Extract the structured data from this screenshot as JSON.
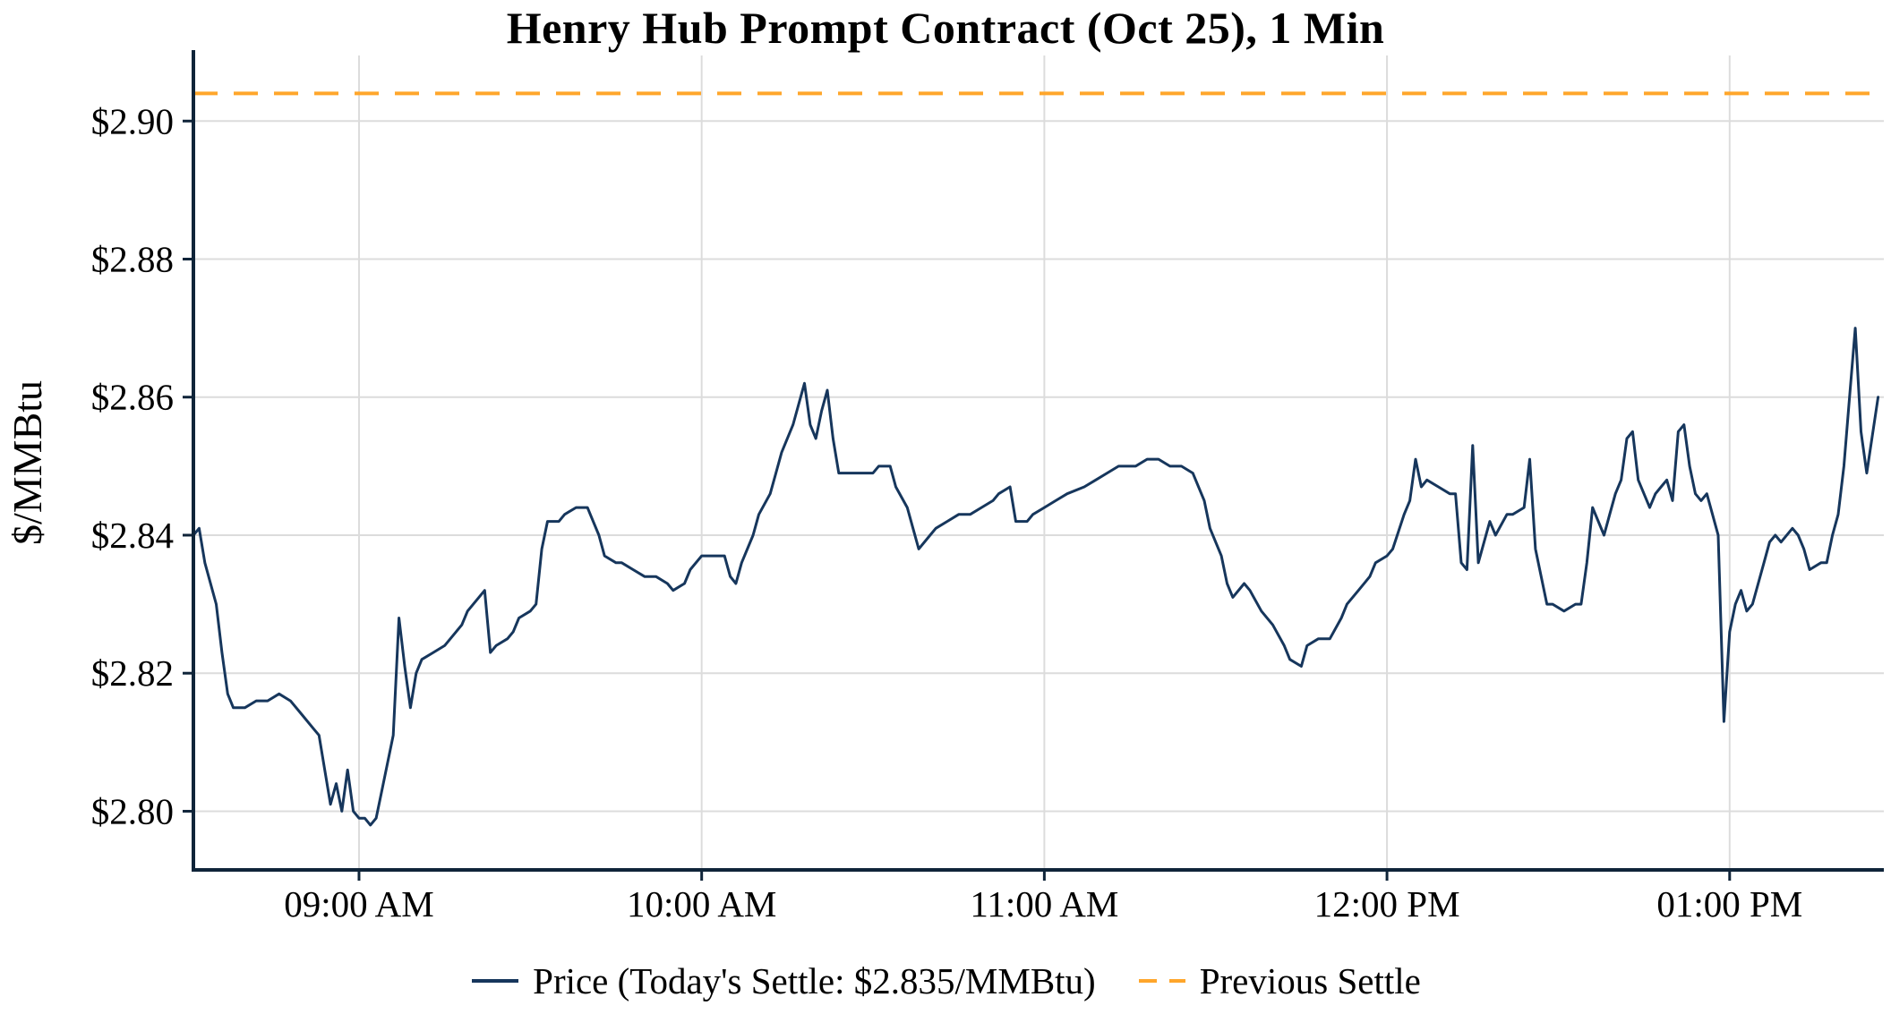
{
  "title": "Henry Hub Prompt Contract (Oct 25), 1 Min",
  "chart_data": {
    "type": "line",
    "title": "Henry Hub Prompt Contract (Oct 25), 1 Min",
    "xlabel": "",
    "ylabel": "$/MMBtu",
    "grid": true,
    "legend_position": "bottom",
    "x_ticks": [
      "09:00 AM",
      "10:00 AM",
      "11:00 AM",
      "12:00 PM",
      "01:00 PM"
    ],
    "x_tick_minutes": [
      540,
      600,
      660,
      720,
      780
    ],
    "y_ticks": [
      "$2.80",
      "$2.82",
      "$2.84",
      "$2.86",
      "$2.88",
      "$2.90"
    ],
    "y_tick_values": [
      2.8,
      2.82,
      2.84,
      2.86,
      2.88,
      2.9
    ],
    "xlim_minutes": [
      511,
      807
    ],
    "ylim": [
      2.7915,
      2.9095
    ],
    "previous_settle": 2.904,
    "todays_settle": 2.835,
    "legend": {
      "price_label": "Price (Today's Settle: $2.835/MMBtu)",
      "settle_label": "Previous Settle"
    },
    "colors": {
      "price_line": "#16365C",
      "previous_settle_line": "#FFA62B",
      "grid": "#DCDCDC",
      "axis": "#0F2439",
      "text": "#000000"
    },
    "series": [
      {
        "name": "Price",
        "points": [
          [
            "08:31",
            2.84
          ],
          [
            "08:32",
            2.841
          ],
          [
            "08:33",
            2.836
          ],
          [
            "08:35",
            2.83
          ],
          [
            "08:36",
            2.823
          ],
          [
            "08:37",
            2.817
          ],
          [
            "08:38",
            2.815
          ],
          [
            "08:40",
            2.815
          ],
          [
            "08:42",
            2.816
          ],
          [
            "08:44",
            2.816
          ],
          [
            "08:46",
            2.817
          ],
          [
            "08:48",
            2.816
          ],
          [
            "08:50",
            2.814
          ],
          [
            "08:52",
            2.812
          ],
          [
            "08:53",
            2.811
          ],
          [
            "08:54",
            2.806
          ],
          [
            "08:55",
            2.801
          ],
          [
            "08:56",
            2.804
          ],
          [
            "08:57",
            2.8
          ],
          [
            "08:58",
            2.806
          ],
          [
            "08:59",
            2.8
          ],
          [
            "09:00",
            2.799
          ],
          [
            "09:01",
            2.799
          ],
          [
            "09:02",
            2.798
          ],
          [
            "09:03",
            2.799
          ],
          [
            "09:04",
            2.803
          ],
          [
            "09:06",
            2.811
          ],
          [
            "09:07",
            2.828
          ],
          [
            "09:08",
            2.821
          ],
          [
            "09:09",
            2.815
          ],
          [
            "09:10",
            2.82
          ],
          [
            "09:11",
            2.822
          ],
          [
            "09:13",
            2.823
          ],
          [
            "09:15",
            2.824
          ],
          [
            "09:16",
            2.825
          ],
          [
            "09:18",
            2.827
          ],
          [
            "09:19",
            2.829
          ],
          [
            "09:21",
            2.831
          ],
          [
            "09:22",
            2.832
          ],
          [
            "09:23",
            2.823
          ],
          [
            "09:24",
            2.824
          ],
          [
            "09:26",
            2.825
          ],
          [
            "09:27",
            2.826
          ],
          [
            "09:28",
            2.828
          ],
          [
            "09:30",
            2.829
          ],
          [
            "09:31",
            2.83
          ],
          [
            "09:32",
            2.838
          ],
          [
            "09:33",
            2.842
          ],
          [
            "09:35",
            2.842
          ],
          [
            "09:36",
            2.843
          ],
          [
            "09:38",
            2.844
          ],
          [
            "09:40",
            2.844
          ],
          [
            "09:41",
            2.842
          ],
          [
            "09:42",
            2.84
          ],
          [
            "09:43",
            2.837
          ],
          [
            "09:45",
            2.836
          ],
          [
            "09:46",
            2.836
          ],
          [
            "09:48",
            2.835
          ],
          [
            "09:50",
            2.834
          ],
          [
            "09:52",
            2.834
          ],
          [
            "09:54",
            2.833
          ],
          [
            "09:55",
            2.832
          ],
          [
            "09:57",
            2.833
          ],
          [
            "09:58",
            2.835
          ],
          [
            "10:00",
            2.837
          ],
          [
            "10:01",
            2.837
          ],
          [
            "10:03",
            2.837
          ],
          [
            "10:04",
            2.837
          ],
          [
            "10:05",
            2.834
          ],
          [
            "10:06",
            2.833
          ],
          [
            "10:07",
            2.836
          ],
          [
            "10:09",
            2.84
          ],
          [
            "10:10",
            2.843
          ],
          [
            "10:12",
            2.846
          ],
          [
            "10:13",
            2.849
          ],
          [
            "10:14",
            2.852
          ],
          [
            "10:16",
            2.856
          ],
          [
            "10:17",
            2.859
          ],
          [
            "10:18",
            2.862
          ],
          [
            "10:19",
            2.856
          ],
          [
            "10:20",
            2.854
          ],
          [
            "10:21",
            2.858
          ],
          [
            "10:22",
            2.861
          ],
          [
            "10:23",
            2.854
          ],
          [
            "10:24",
            2.849
          ],
          [
            "10:26",
            2.849
          ],
          [
            "10:28",
            2.849
          ],
          [
            "10:30",
            2.849
          ],
          [
            "10:31",
            2.85
          ],
          [
            "10:33",
            2.85
          ],
          [
            "10:34",
            2.847
          ],
          [
            "10:36",
            2.844
          ],
          [
            "10:37",
            2.841
          ],
          [
            "10:38",
            2.838
          ],
          [
            "10:40",
            2.84
          ],
          [
            "10:41",
            2.841
          ],
          [
            "10:43",
            2.842
          ],
          [
            "10:45",
            2.843
          ],
          [
            "10:47",
            2.843
          ],
          [
            "10:49",
            2.844
          ],
          [
            "10:51",
            2.845
          ],
          [
            "10:52",
            2.846
          ],
          [
            "10:54",
            2.847
          ],
          [
            "10:55",
            2.842
          ],
          [
            "10:57",
            2.842
          ],
          [
            "10:58",
            2.843
          ],
          [
            "11:00",
            2.844
          ],
          [
            "11:02",
            2.845
          ],
          [
            "11:04",
            2.846
          ],
          [
            "11:07",
            2.847
          ],
          [
            "11:09",
            2.848
          ],
          [
            "11:11",
            2.849
          ],
          [
            "11:13",
            2.85
          ],
          [
            "11:16",
            2.85
          ],
          [
            "11:18",
            2.851
          ],
          [
            "11:20",
            2.851
          ],
          [
            "11:22",
            2.85
          ],
          [
            "11:24",
            2.85
          ],
          [
            "11:26",
            2.849
          ],
          [
            "11:28",
            2.845
          ],
          [
            "11:29",
            2.841
          ],
          [
            "11:31",
            2.837
          ],
          [
            "11:32",
            2.833
          ],
          [
            "11:33",
            2.831
          ],
          [
            "11:35",
            2.833
          ],
          [
            "11:36",
            2.832
          ],
          [
            "11:38",
            2.829
          ],
          [
            "11:40",
            2.827
          ],
          [
            "11:42",
            2.824
          ],
          [
            "11:43",
            2.822
          ],
          [
            "11:45",
            2.821
          ],
          [
            "11:46",
            2.824
          ],
          [
            "11:48",
            2.825
          ],
          [
            "11:50",
            2.825
          ],
          [
            "11:52",
            2.828
          ],
          [
            "11:53",
            2.83
          ],
          [
            "11:55",
            2.832
          ],
          [
            "11:57",
            2.834
          ],
          [
            "11:58",
            2.836
          ],
          [
            "12:00",
            2.837
          ],
          [
            "12:01",
            2.838
          ],
          [
            "12:03",
            2.843
          ],
          [
            "12:04",
            2.845
          ],
          [
            "12:05",
            2.851
          ],
          [
            "12:06",
            2.847
          ],
          [
            "12:07",
            2.848
          ],
          [
            "12:09",
            2.847
          ],
          [
            "12:11",
            2.846
          ],
          [
            "12:12",
            2.846
          ],
          [
            "12:13",
            2.836
          ],
          [
            "12:14",
            2.835
          ],
          [
            "12:15",
            2.853
          ],
          [
            "12:16",
            2.836
          ],
          [
            "12:18",
            2.842
          ],
          [
            "12:19",
            2.84
          ],
          [
            "12:21",
            2.843
          ],
          [
            "12:22",
            2.843
          ],
          [
            "12:24",
            2.844
          ],
          [
            "12:25",
            2.851
          ],
          [
            "12:26",
            2.838
          ],
          [
            "12:28",
            2.83
          ],
          [
            "12:29",
            2.83
          ],
          [
            "12:31",
            2.829
          ],
          [
            "12:33",
            2.83
          ],
          [
            "12:34",
            2.83
          ],
          [
            "12:35",
            2.836
          ],
          [
            "12:36",
            2.844
          ],
          [
            "12:38",
            2.84
          ],
          [
            "12:39",
            2.843
          ],
          [
            "12:40",
            2.846
          ],
          [
            "12:41",
            2.848
          ],
          [
            "12:42",
            2.854
          ],
          [
            "12:43",
            2.855
          ],
          [
            "12:44",
            2.848
          ],
          [
            "12:46",
            2.844
          ],
          [
            "12:47",
            2.846
          ],
          [
            "12:48",
            2.847
          ],
          [
            "12:49",
            2.848
          ],
          [
            "12:50",
            2.845
          ],
          [
            "12:51",
            2.855
          ],
          [
            "12:52",
            2.856
          ],
          [
            "12:53",
            2.85
          ],
          [
            "12:54",
            2.846
          ],
          [
            "12:55",
            2.845
          ],
          [
            "12:56",
            2.846
          ],
          [
            "12:58",
            2.84
          ],
          [
            "12:59",
            2.813
          ],
          [
            "13:00",
            2.826
          ],
          [
            "13:01",
            2.83
          ],
          [
            "13:02",
            2.832
          ],
          [
            "13:03",
            2.829
          ],
          [
            "13:04",
            2.83
          ],
          [
            "13:06",
            2.836
          ],
          [
            "13:07",
            2.839
          ],
          [
            "13:08",
            2.84
          ],
          [
            "13:09",
            2.839
          ],
          [
            "13:11",
            2.841
          ],
          [
            "13:12",
            2.84
          ],
          [
            "13:13",
            2.838
          ],
          [
            "13:14",
            2.835
          ],
          [
            "13:16",
            2.836
          ],
          [
            "13:17",
            2.836
          ],
          [
            "13:18",
            2.84
          ],
          [
            "13:19",
            2.843
          ],
          [
            "13:20",
            2.85
          ],
          [
            "13:21",
            2.86
          ],
          [
            "13:22",
            2.87
          ],
          [
            "13:23",
            2.855
          ],
          [
            "13:24",
            2.849
          ],
          [
            "13:26",
            2.86
          ]
        ]
      }
    ]
  }
}
